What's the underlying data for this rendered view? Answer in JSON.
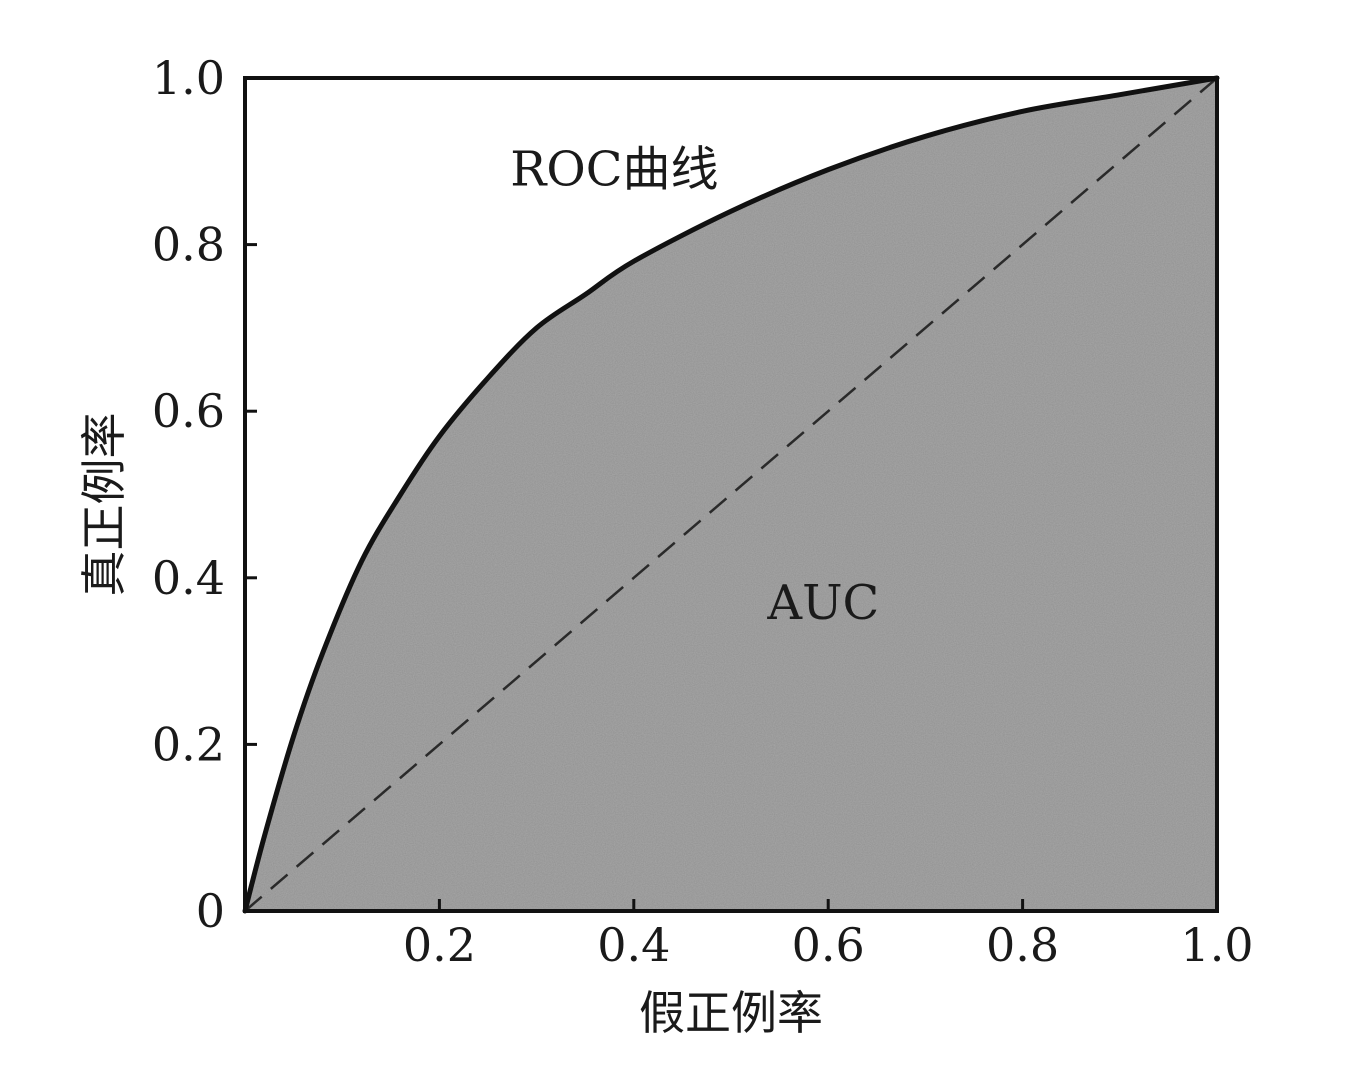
{
  "chart_data": {
    "type": "area",
    "title": "",
    "xlabel": "假正例率",
    "ylabel": "真正例率",
    "xlim": [
      0,
      1.0
    ],
    "ylim": [
      0,
      1.0
    ],
    "xticks": [
      {
        "value": 0.2,
        "label": "0.2"
      },
      {
        "value": 0.4,
        "label": "0.4"
      },
      {
        "value": 0.6,
        "label": "0.6"
      },
      {
        "value": 0.8,
        "label": "0.8"
      },
      {
        "value": 1.0,
        "label": "1.0"
      }
    ],
    "yticks": [
      {
        "value": 0,
        "label": "0"
      },
      {
        "value": 0.2,
        "label": "0.2"
      },
      {
        "value": 0.4,
        "label": "0.4"
      },
      {
        "value": 0.6,
        "label": "0.6"
      },
      {
        "value": 0.8,
        "label": "0.8"
      },
      {
        "value": 1.0,
        "label": "1.0"
      }
    ],
    "series": [
      {
        "style": "solid",
        "x": [
          0,
          0.02,
          0.05,
          0.08,
          0.12,
          0.16,
          0.2,
          0.25,
          0.3,
          0.35,
          0.4,
          0.5,
          0.6,
          0.7,
          0.8,
          0.9,
          1.0
        ],
        "y": [
          0,
          0.09,
          0.21,
          0.31,
          0.42,
          0.5,
          0.57,
          0.64,
          0.7,
          0.74,
          0.78,
          0.84,
          0.89,
          0.93,
          0.96,
          0.98,
          1.0
        ]
      },
      {
        "style": "dashed",
        "x": [
          0,
          1.0
        ],
        "y": [
          0,
          1.0
        ]
      }
    ],
    "annotations": [
      {
        "text": "ROC曲线",
        "x": 0.38,
        "y": 0.89
      },
      {
        "text": "AUC",
        "x": 0.595,
        "y": 0.37
      }
    ],
    "colors": {
      "area_fill": "#a7a7a7",
      "curve": "#111111",
      "diagonal": "#2a2a2a",
      "frame": "#111111"
    },
    "grid": false
  }
}
